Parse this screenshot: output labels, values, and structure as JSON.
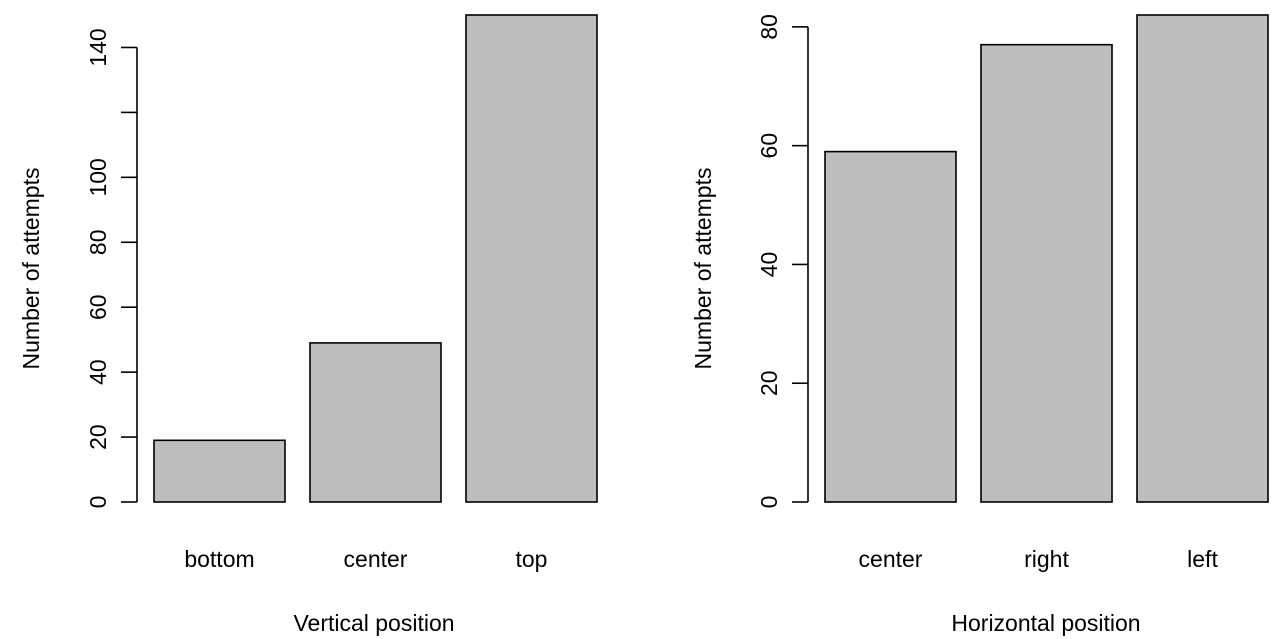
{
  "chart_data": [
    {
      "type": "bar",
      "categories": [
        "bottom",
        "center",
        "top"
      ],
      "values": [
        19,
        49,
        150
      ],
      "title": "",
      "xlabel": "Vertical position",
      "ylabel": "Number of attempts",
      "ylim": [
        0,
        150
      ],
      "yticks": [
        0,
        20,
        40,
        60,
        80,
        100,
        140
      ],
      "extra_ytick_marks": [
        120
      ],
      "bar_color": "#bebebe",
      "grid": false,
      "legend": "none"
    },
    {
      "type": "bar",
      "categories": [
        "center",
        "right",
        "left"
      ],
      "values": [
        59,
        77,
        82
      ],
      "title": "",
      "xlabel": "Horizontal position",
      "ylabel": "Number of attempts",
      "ylim": [
        0,
        82
      ],
      "yticks": [
        0,
        20,
        40,
        60,
        80
      ],
      "extra_ytick_marks": [],
      "bar_color": "#bebebe",
      "grid": false,
      "legend": "none"
    }
  ]
}
